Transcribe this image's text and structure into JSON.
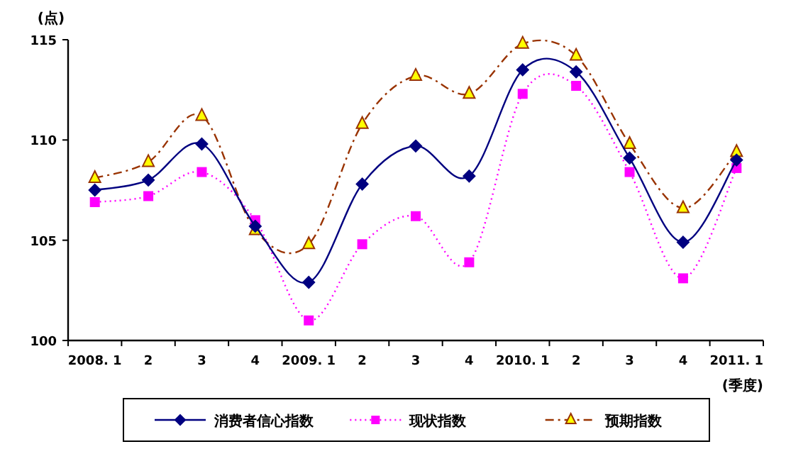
{
  "chart_data": {
    "type": "line",
    "ylabel": "(点)",
    "xlabel": "(季度)",
    "categories": [
      "2008. 1",
      "2",
      "3",
      "4",
      "2009. 1",
      "2",
      "3",
      "4",
      "2010. 1",
      "2",
      "3",
      "4",
      "2011. 1"
    ],
    "series": [
      {
        "name": "消费者信心指数",
        "color": "#000080",
        "marker": "diamond",
        "line_style": "solid",
        "values": [
          107.5,
          108.0,
          109.8,
          105.7,
          102.9,
          107.8,
          109.7,
          108.2,
          113.5,
          113.4,
          109.1,
          104.9,
          109.0
        ]
      },
      {
        "name": "现状指数",
        "color": "#ff00ff",
        "marker": "square",
        "line_style": "dotted",
        "values": [
          106.9,
          107.2,
          108.4,
          106.0,
          101.0,
          104.8,
          106.2,
          103.9,
          112.3,
          112.7,
          108.4,
          103.1,
          108.6
        ]
      },
      {
        "name": "预期指数",
        "color": "#993300",
        "marker": "triangle",
        "line_style": "dashed",
        "values": [
          108.1,
          108.9,
          111.2,
          105.5,
          104.8,
          110.8,
          113.2,
          112.3,
          114.8,
          114.2,
          109.8,
          106.6,
          109.4
        ]
      }
    ],
    "ylim": [
      100,
      115
    ],
    "yticks": [
      100,
      105,
      110,
      115
    ],
    "grid": false,
    "legend": "bottom"
  }
}
